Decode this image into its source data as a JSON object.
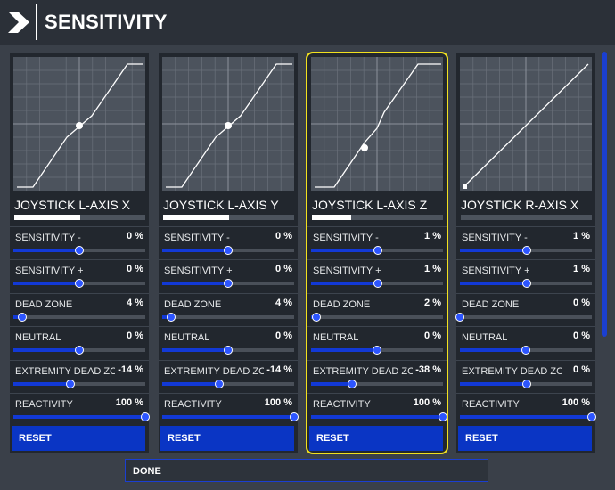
{
  "header": {
    "title": "SENSITIVITY",
    "logo_icon": "chevron-right-logo"
  },
  "panels": [
    {
      "axis": "JOYSTICK L-AXIS X",
      "axis_level": 0.5,
      "reset_label": "RESET",
      "selected": false,
      "curve": "sshape",
      "point": [
        0.5,
        0.5
      ],
      "settings": [
        {
          "label": "SENSITIVITY -",
          "value": "0 %",
          "level": 0.5
        },
        {
          "label": "SENSITIVITY +",
          "value": "0 %",
          "level": 0.5
        },
        {
          "label": "DEAD ZONE",
          "value": "4 %",
          "level": 0.07
        },
        {
          "label": "NEUTRAL",
          "value": "0 %",
          "level": 0.5
        },
        {
          "label": "EXTREMITY DEAD ZONE",
          "value": "-14 %",
          "level": 0.43
        },
        {
          "label": "REACTIVITY",
          "value": "100 %",
          "level": 1.0
        }
      ]
    },
    {
      "axis": "JOYSTICK L-AXIS Y",
      "axis_level": 0.5,
      "reset_label": "RESET",
      "selected": false,
      "curve": "sshape",
      "point": [
        0.5,
        0.5
      ],
      "settings": [
        {
          "label": "SENSITIVITY -",
          "value": "0 %",
          "level": 0.5
        },
        {
          "label": "SENSITIVITY +",
          "value": "0 %",
          "level": 0.5
        },
        {
          "label": "DEAD ZONE",
          "value": "4 %",
          "level": 0.07
        },
        {
          "label": "NEUTRAL",
          "value": "0 %",
          "level": 0.5
        },
        {
          "label": "EXTREMITY DEAD ZONE",
          "value": "-14 %",
          "level": 0.43
        },
        {
          "label": "REACTIVITY",
          "value": "100 %",
          "level": 1.0
        }
      ]
    },
    {
      "axis": "JOYSTICK L-AXIS Z",
      "axis_level": 0.3,
      "reset_label": "RESET",
      "selected": true,
      "curve": "steep",
      "point": [
        0.4,
        0.32
      ],
      "settings": [
        {
          "label": "SENSITIVITY -",
          "value": "1 %",
          "level": 0.51
        },
        {
          "label": "SENSITIVITY +",
          "value": "1 %",
          "level": 0.51
        },
        {
          "label": "DEAD ZONE",
          "value": "2 %",
          "level": 0.04
        },
        {
          "label": "NEUTRAL",
          "value": "0 %",
          "level": 0.5
        },
        {
          "label": "EXTREMITY DEAD ZONE",
          "value": "-38 %",
          "level": 0.31
        },
        {
          "label": "REACTIVITY",
          "value": "100 %",
          "level": 1.0
        }
      ]
    },
    {
      "axis": "JOYSTICK R-AXIS X",
      "axis_level": 0.0,
      "reset_label": "RESET",
      "selected": false,
      "curve": "linear",
      "point": [
        0.02,
        0.02
      ],
      "settings": [
        {
          "label": "SENSITIVITY -",
          "value": "1 %",
          "level": 0.51
        },
        {
          "label": "SENSITIVITY +",
          "value": "1 %",
          "level": 0.51
        },
        {
          "label": "DEAD ZONE",
          "value": "0 %",
          "level": 0.0
        },
        {
          "label": "NEUTRAL",
          "value": "0 %",
          "level": 0.5
        },
        {
          "label": "EXTREMITY DEAD ZONE",
          "value": "0 %",
          "level": 0.51
        },
        {
          "label": "REACTIVITY",
          "value": "100 %",
          "level": 1.0
        }
      ]
    }
  ],
  "footer": {
    "done_label": "DONE"
  }
}
